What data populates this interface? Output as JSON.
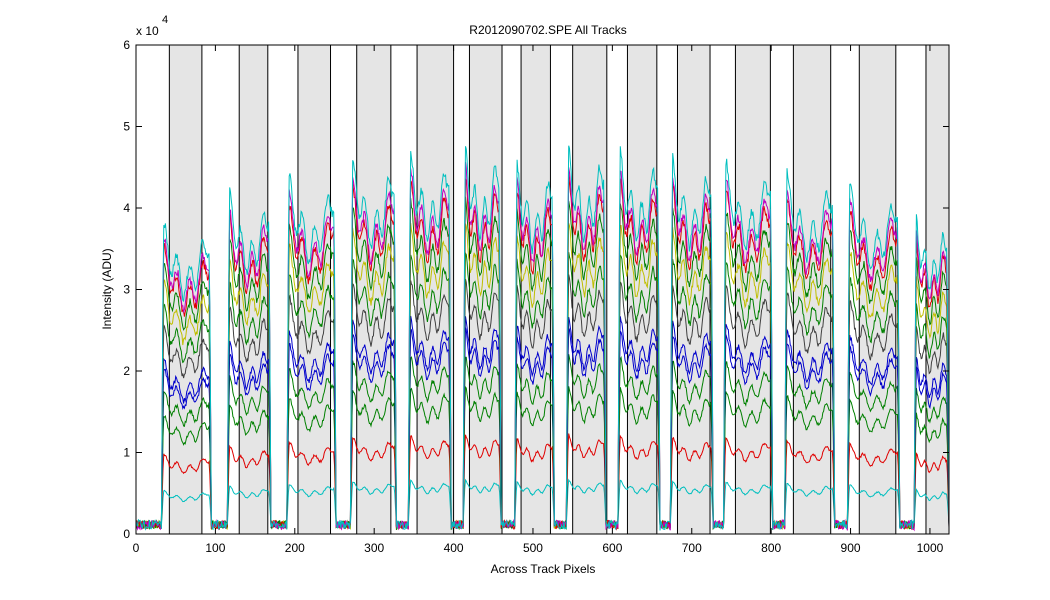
{
  "chart_data": {
    "type": "line",
    "title": "R2012090702.SPE  All Tracks",
    "xlabel": "Across Track Pixels",
    "ylabel": "Intensity (ADU)",
    "y_multiplier_label": "x 10",
    "y_multiplier_exponent": "4",
    "xlim": [
      0,
      1024
    ],
    "ylim": [
      0,
      60000
    ],
    "x_ticks": [
      0,
      100,
      200,
      300,
      400,
      500,
      600,
      700,
      800,
      900,
      1000
    ],
    "x_tick_labels": [
      "0",
      "100",
      "200",
      "300",
      "400",
      "500",
      "600",
      "700",
      "800",
      "900",
      "1000"
    ],
    "y_ticks": [
      0,
      10000,
      20000,
      30000,
      40000,
      50000,
      60000
    ],
    "y_tick_labels": [
      "0",
      "1",
      "2",
      "3",
      "4",
      "5",
      "6"
    ],
    "grid": false,
    "legend": "none",
    "shaded_regions": [
      [
        42,
        83
      ],
      [
        130,
        166
      ],
      [
        204,
        245
      ],
      [
        278,
        321
      ],
      [
        354,
        400
      ],
      [
        420,
        461
      ],
      [
        485,
        522
      ],
      [
        550,
        593
      ],
      [
        619,
        656
      ],
      [
        682,
        723
      ],
      [
        755,
        799
      ],
      [
        828,
        875
      ],
      [
        911,
        957
      ],
      [
        995,
        1024
      ]
    ],
    "channel_ranges": [
      [
        32,
        95
      ],
      [
        115,
        170
      ],
      [
        190,
        252
      ],
      [
        270,
        328
      ],
      [
        343,
        397
      ],
      [
        412,
        460
      ],
      [
        477,
        527
      ],
      [
        542,
        592
      ],
      [
        607,
        660
      ],
      [
        673,
        727
      ],
      [
        740,
        802
      ],
      [
        817,
        880
      ],
      [
        896,
        962
      ],
      [
        980,
        1024
      ]
    ],
    "channel_scale": [
      0.8,
      0.88,
      0.92,
      0.97,
      0.99,
      1.0,
      0.96,
      1.0,
      0.99,
      0.97,
      0.96,
      0.93,
      0.9,
      0.82
    ],
    "baseline_level": 1000,
    "series": [
      {
        "color": "#00bfbf",
        "level": 6500
      },
      {
        "color": "#e00000",
        "level": 12000
      },
      {
        "color": "#008000",
        "level": 17800
      },
      {
        "color": "#008000",
        "level": 21500
      },
      {
        "color": "#0000cc",
        "level": 24800
      },
      {
        "color": "#0000cc",
        "level": 26300
      },
      {
        "color": "#404040",
        "level": 31000
      },
      {
        "color": "#008000",
        "level": 34200
      },
      {
        "color": "#bfbf00",
        "level": 37800
      },
      {
        "color": "#008000",
        "level": 40500
      },
      {
        "color": "#e00000",
        "level": 43300
      },
      {
        "color": "#bf00bf",
        "level": 44500
      },
      {
        "color": "#00bfbf",
        "level": 46800
      }
    ]
  }
}
